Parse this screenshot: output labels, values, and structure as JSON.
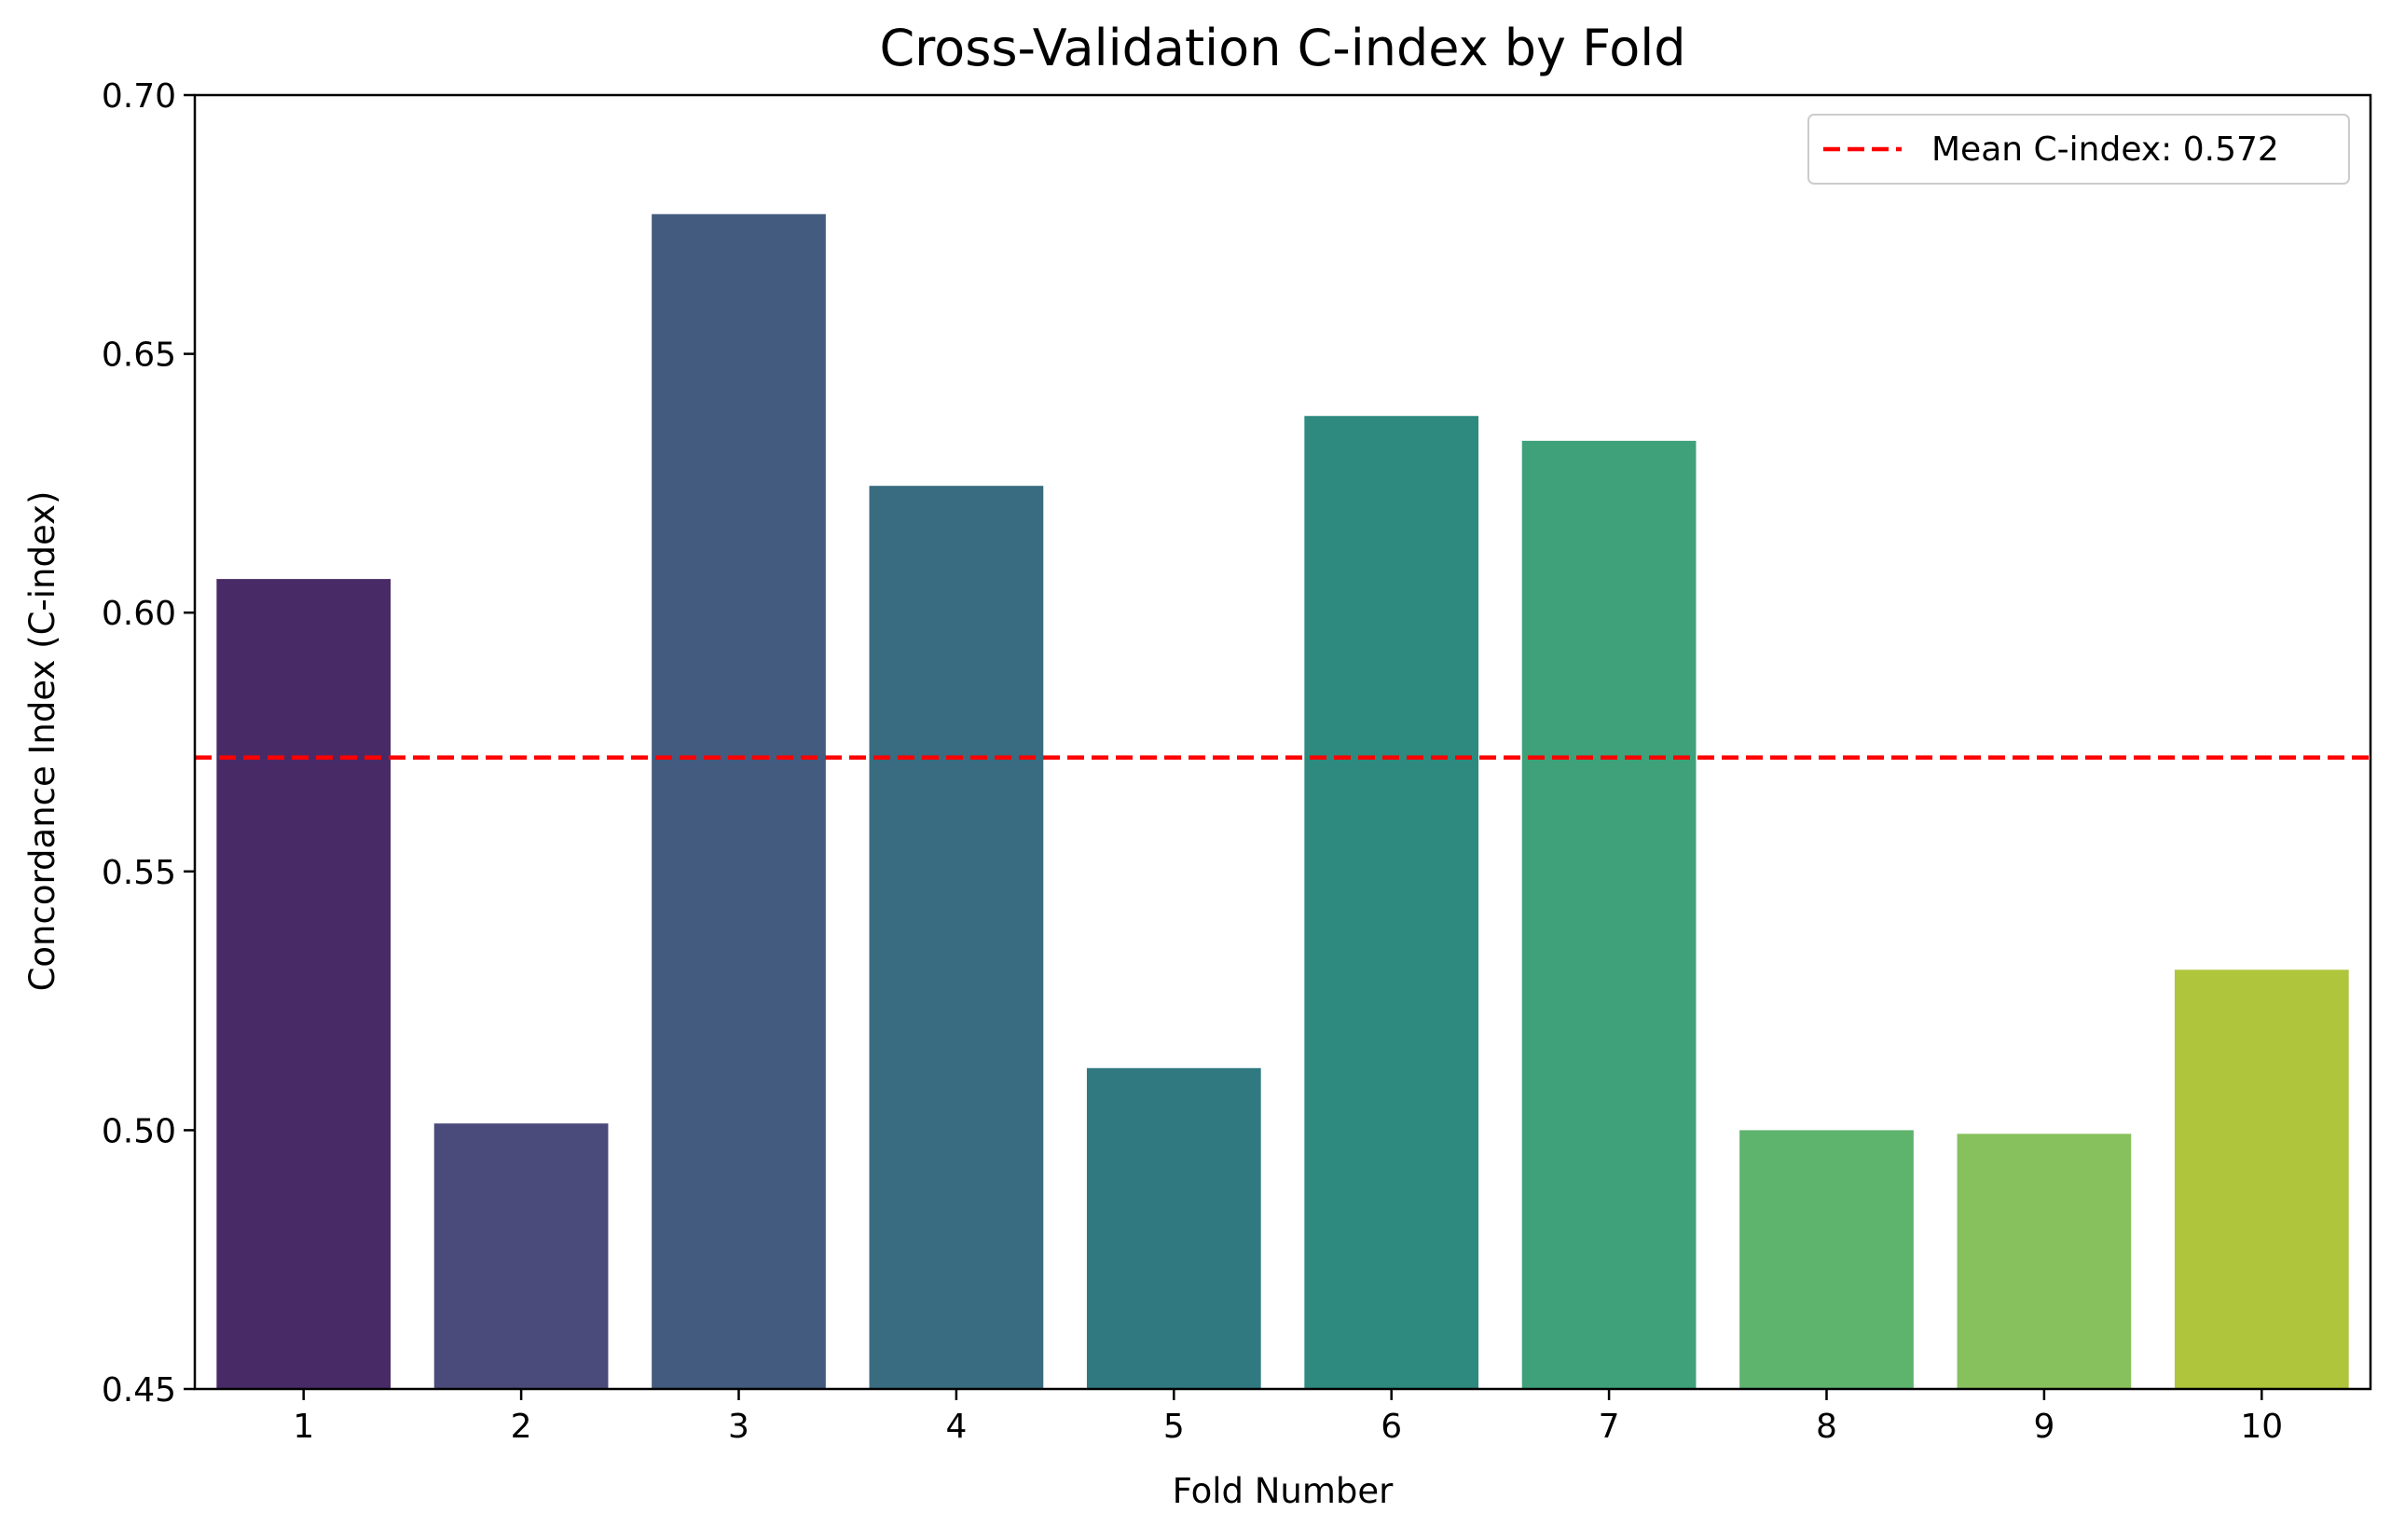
{
  "chart_data": {
    "type": "bar",
    "title": "Cross-Validation C-index by Fold",
    "xlabel": "Fold Number",
    "ylabel": "Concordance Index (C-index)",
    "categories": [
      "1",
      "2",
      "3",
      "4",
      "5",
      "6",
      "7",
      "8",
      "9",
      "10"
    ],
    "values": [
      0.6065,
      0.5013,
      0.677,
      0.6245,
      0.512,
      0.638,
      0.6332,
      0.5,
      0.4993,
      0.531
    ],
    "colors": [
      "#482b66",
      "#4a4a7b",
      "#435b7e",
      "#396c80",
      "#307981",
      "#2e897e",
      "#3ea17a",
      "#5fb46d",
      "#87c15d",
      "#afc53b"
    ],
    "ylim": [
      0.45,
      0.7
    ],
    "yticks": [
      0.45,
      0.5,
      0.55,
      0.6,
      0.65,
      0.7
    ],
    "ytick_labels": [
      "0.45",
      "0.50",
      "0.55",
      "0.60",
      "0.65",
      "0.70"
    ],
    "grid": false,
    "reference_line": {
      "value": 0.572,
      "label": "Mean C-index: 0.572",
      "color": "#ff0000",
      "style": "dashed"
    },
    "legend": {
      "position": "top-right",
      "entries": [
        "Mean C-index: 0.572"
      ]
    }
  }
}
